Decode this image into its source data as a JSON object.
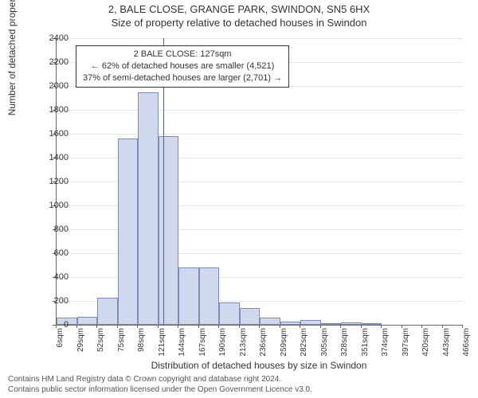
{
  "title": "2, BALE CLOSE, GRANGE PARK, SWINDON, SN5 6HX",
  "subtitle": "Size of property relative to detached houses in Swindon",
  "chart": {
    "type": "histogram",
    "x_tick_start": 6,
    "x_tick_step": 23,
    "x_tick_count": 21,
    "x_tick_suffix": "sqm",
    "y_ticks": [
      0,
      200,
      400,
      600,
      800,
      1000,
      1200,
      1400,
      1600,
      1800,
      2000,
      2200,
      2400
    ],
    "ymax": 2400,
    "bars": [
      60,
      70,
      230,
      1560,
      1950,
      1580,
      480,
      480,
      190,
      140,
      60,
      30,
      40,
      10,
      20,
      10,
      0,
      0,
      0,
      0
    ],
    "bar_fill": "#cfd8ec",
    "bar_stroke": "#7a8db8",
    "grid_color": "#e5e5e5",
    "axis_color": "#666666",
    "marker_x_sqm": 127,
    "marker_color": "#cc3333",
    "background_color": "#ffffff"
  },
  "annotation": {
    "line1": "2 BALE CLOSE: 127sqm",
    "line2": "← 62% of detached houses are smaller (4,521)",
    "line3": "37% of semi-detached houses are larger (2,701) →"
  },
  "axes": {
    "ylabel": "Number of detached properties",
    "xlabel": "Distribution of detached houses by size in Swindon"
  },
  "footer": {
    "line1": "Contains HM Land Registry data © Crown copyright and database right 2024.",
    "line2": "Contains public sector information licensed under the Open Government Licence v3.0."
  }
}
